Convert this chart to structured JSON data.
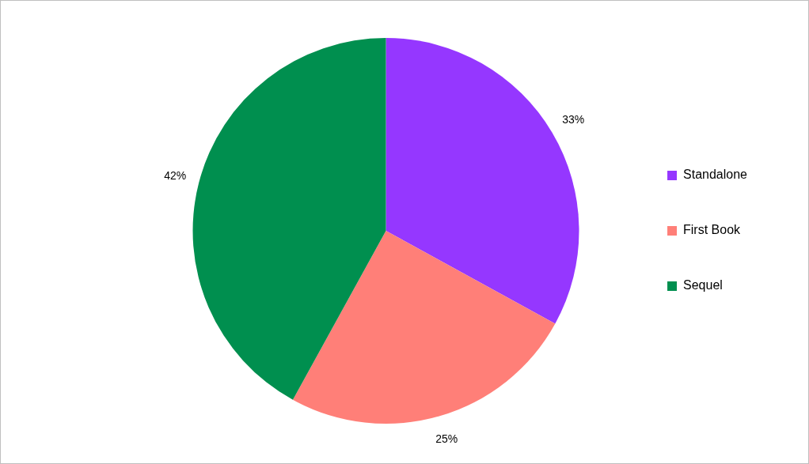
{
  "chart_data": {
    "type": "pie",
    "categories": [
      "Standalone",
      "First Book",
      "Sequel"
    ],
    "values": [
      33,
      25,
      42
    ],
    "colors": [
      "#9537ff",
      "#ff7f78",
      "#008f4f"
    ],
    "value_labels": [
      "33%",
      "25%",
      "42%"
    ],
    "legend": "right"
  }
}
